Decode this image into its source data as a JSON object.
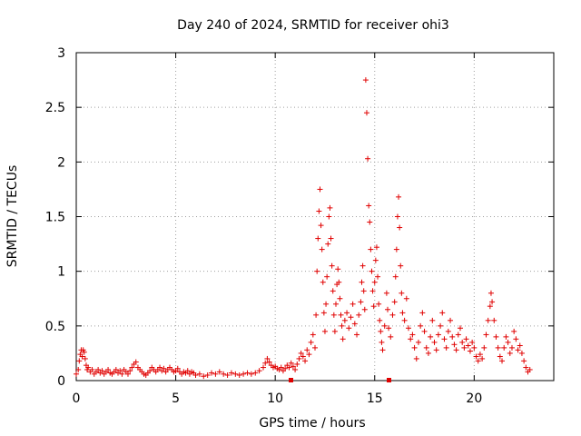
{
  "chart_data": {
    "type": "scatter",
    "title": "Day 240 of 2024, SRMTID for receiver ohi3",
    "xlabel": "GPS time / hours",
    "ylabel": "SRMTID / TECUs",
    "xlim": [
      0,
      24
    ],
    "ylim": [
      0,
      3
    ],
    "xticks": [
      0,
      5,
      10,
      15,
      20
    ],
    "xtick_labels": [
      "0",
      "5",
      "10",
      "15",
      "20"
    ],
    "yticks": [
      0,
      0.5,
      1,
      1.5,
      2,
      2.5,
      3
    ],
    "ytick_labels": [
      "0",
      "0.5",
      "1",
      "1.5",
      "2",
      "2.5",
      "3"
    ],
    "grid": true,
    "marker": "plus",
    "color": "#e00000",
    "series": [
      {
        "name": "SRMTID",
        "points": [
          [
            0.0,
            0.06
          ],
          [
            0.1,
            0.1
          ],
          [
            0.15,
            0.18
          ],
          [
            0.2,
            0.24
          ],
          [
            0.25,
            0.28
          ],
          [
            0.3,
            0.22
          ],
          [
            0.35,
            0.28
          ],
          [
            0.4,
            0.26
          ],
          [
            0.45,
            0.2
          ],
          [
            0.5,
            0.14
          ],
          [
            0.55,
            0.1
          ],
          [
            0.6,
            0.12
          ],
          [
            0.7,
            0.08
          ],
          [
            0.8,
            0.1
          ],
          [
            0.9,
            0.06
          ],
          [
            1.0,
            0.08
          ],
          [
            1.1,
            0.1
          ],
          [
            1.2,
            0.07
          ],
          [
            1.3,
            0.09
          ],
          [
            1.4,
            0.06
          ],
          [
            1.5,
            0.08
          ],
          [
            1.6,
            0.1
          ],
          [
            1.7,
            0.07
          ],
          [
            1.8,
            0.06
          ],
          [
            1.9,
            0.08
          ],
          [
            2.0,
            0.1
          ],
          [
            2.1,
            0.07
          ],
          [
            2.2,
            0.09
          ],
          [
            2.3,
            0.06
          ],
          [
            2.4,
            0.1
          ],
          [
            2.5,
            0.08
          ],
          [
            2.6,
            0.06
          ],
          [
            2.7,
            0.09
          ],
          [
            2.8,
            0.12
          ],
          [
            2.9,
            0.15
          ],
          [
            3.0,
            0.17
          ],
          [
            3.1,
            0.12
          ],
          [
            3.2,
            0.1
          ],
          [
            3.3,
            0.08
          ],
          [
            3.4,
            0.06
          ],
          [
            3.5,
            0.05
          ],
          [
            3.6,
            0.07
          ],
          [
            3.7,
            0.09
          ],
          [
            3.8,
            0.12
          ],
          [
            3.9,
            0.1
          ],
          [
            4.0,
            0.08
          ],
          [
            4.1,
            0.1
          ],
          [
            4.2,
            0.12
          ],
          [
            4.3,
            0.09
          ],
          [
            4.4,
            0.11
          ],
          [
            4.5,
            0.08
          ],
          [
            4.6,
            0.1
          ],
          [
            4.7,
            0.12
          ],
          [
            4.8,
            0.1
          ],
          [
            4.9,
            0.08
          ],
          [
            5.0,
            0.09
          ],
          [
            5.1,
            0.11
          ],
          [
            5.2,
            0.08
          ],
          [
            5.3,
            0.06
          ],
          [
            5.4,
            0.08
          ],
          [
            5.5,
            0.07
          ],
          [
            5.6,
            0.09
          ],
          [
            5.7,
            0.06
          ],
          [
            5.8,
            0.08
          ],
          [
            5.9,
            0.07
          ],
          [
            6.0,
            0.05
          ],
          [
            6.2,
            0.06
          ],
          [
            6.4,
            0.04
          ],
          [
            6.6,
            0.05
          ],
          [
            6.8,
            0.07
          ],
          [
            7.0,
            0.06
          ],
          [
            7.2,
            0.08
          ],
          [
            7.4,
            0.06
          ],
          [
            7.6,
            0.05
          ],
          [
            7.8,
            0.07
          ],
          [
            8.0,
            0.06
          ],
          [
            8.2,
            0.05
          ],
          [
            8.4,
            0.06
          ],
          [
            8.6,
            0.07
          ],
          [
            8.8,
            0.06
          ],
          [
            9.0,
            0.07
          ],
          [
            9.2,
            0.09
          ],
          [
            9.4,
            0.12
          ],
          [
            9.5,
            0.16
          ],
          [
            9.6,
            0.2
          ],
          [
            9.7,
            0.17
          ],
          [
            9.8,
            0.14
          ],
          [
            9.9,
            0.12
          ],
          [
            10.0,
            0.13
          ],
          [
            10.1,
            0.11
          ],
          [
            10.2,
            0.1
          ],
          [
            10.3,
            0.12
          ],
          [
            10.4,
            0.09
          ],
          [
            10.5,
            0.11
          ],
          [
            10.6,
            0.14
          ],
          [
            10.7,
            0.12
          ],
          [
            10.8,
            0.16
          ],
          [
            10.9,
            0.13
          ],
          [
            11.0,
            0.1
          ],
          [
            11.1,
            0.15
          ],
          [
            11.2,
            0.2
          ],
          [
            11.3,
            0.25
          ],
          [
            11.4,
            0.22
          ],
          [
            11.5,
            0.18
          ],
          [
            11.6,
            0.28
          ],
          [
            11.7,
            0.24
          ],
          [
            11.8,
            0.35
          ],
          [
            11.9,
            0.42
          ],
          [
            12.0,
            0.3
          ],
          [
            12.05,
            0.6
          ],
          [
            12.1,
            1.0
          ],
          [
            12.15,
            1.3
          ],
          [
            12.2,
            1.55
          ],
          [
            12.25,
            1.75
          ],
          [
            12.3,
            1.42
          ],
          [
            12.35,
            1.2
          ],
          [
            12.4,
            0.9
          ],
          [
            12.45,
            0.62
          ],
          [
            12.5,
            0.45
          ],
          [
            12.55,
            0.7
          ],
          [
            12.6,
            0.95
          ],
          [
            12.65,
            1.25
          ],
          [
            12.7,
            1.5
          ],
          [
            12.75,
            1.58
          ],
          [
            12.8,
            1.3
          ],
          [
            12.85,
            1.05
          ],
          [
            12.9,
            0.82
          ],
          [
            12.95,
            0.6
          ],
          [
            13.0,
            0.45
          ],
          [
            13.05,
            0.7
          ],
          [
            13.1,
            0.88
          ],
          [
            13.15,
            1.02
          ],
          [
            13.2,
            0.9
          ],
          [
            13.25,
            0.75
          ],
          [
            13.3,
            0.6
          ],
          [
            13.35,
            0.5
          ],
          [
            13.4,
            0.38
          ],
          [
            13.5,
            0.55
          ],
          [
            13.6,
            0.62
          ],
          [
            13.7,
            0.48
          ],
          [
            13.8,
            0.58
          ],
          [
            13.9,
            0.7
          ],
          [
            14.0,
            0.52
          ],
          [
            14.1,
            0.42
          ],
          [
            14.2,
            0.6
          ],
          [
            14.3,
            0.72
          ],
          [
            14.35,
            0.9
          ],
          [
            14.4,
            1.05
          ],
          [
            14.45,
            0.82
          ],
          [
            14.5,
            0.65
          ],
          [
            14.55,
            2.75
          ],
          [
            14.6,
            2.45
          ],
          [
            14.65,
            2.03
          ],
          [
            14.7,
            1.6
          ],
          [
            14.75,
            1.45
          ],
          [
            14.8,
            1.2
          ],
          [
            14.85,
            1.0
          ],
          [
            14.9,
            0.82
          ],
          [
            14.95,
            0.68
          ],
          [
            15.0,
            0.9
          ],
          [
            15.05,
            1.1
          ],
          [
            15.1,
            1.22
          ],
          [
            15.15,
            0.95
          ],
          [
            15.2,
            0.7
          ],
          [
            15.25,
            0.55
          ],
          [
            15.3,
            0.45
          ],
          [
            15.35,
            0.35
          ],
          [
            15.4,
            0.28
          ],
          [
            15.5,
            0.5
          ],
          [
            15.6,
            0.8
          ],
          [
            15.65,
            0.65
          ],
          [
            15.7,
            0.48
          ],
          [
            15.8,
            0.4
          ],
          [
            15.9,
            0.6
          ],
          [
            16.0,
            0.72
          ],
          [
            16.05,
            0.95
          ],
          [
            16.1,
            1.2
          ],
          [
            16.15,
            1.5
          ],
          [
            16.2,
            1.68
          ],
          [
            16.25,
            1.4
          ],
          [
            16.3,
            1.05
          ],
          [
            16.35,
            0.8
          ],
          [
            16.4,
            0.62
          ],
          [
            16.5,
            0.55
          ],
          [
            16.6,
            0.75
          ],
          [
            16.7,
            0.48
          ],
          [
            16.8,
            0.38
          ],
          [
            16.9,
            0.42
          ],
          [
            17.0,
            0.3
          ],
          [
            17.1,
            0.2
          ],
          [
            17.2,
            0.35
          ],
          [
            17.3,
            0.5
          ],
          [
            17.4,
            0.62
          ],
          [
            17.5,
            0.45
          ],
          [
            17.6,
            0.3
          ],
          [
            17.7,
            0.25
          ],
          [
            17.8,
            0.4
          ],
          [
            17.9,
            0.55
          ],
          [
            18.0,
            0.35
          ],
          [
            18.1,
            0.28
          ],
          [
            18.2,
            0.42
          ],
          [
            18.3,
            0.5
          ],
          [
            18.4,
            0.62
          ],
          [
            18.5,
            0.38
          ],
          [
            18.6,
            0.3
          ],
          [
            18.7,
            0.45
          ],
          [
            18.8,
            0.55
          ],
          [
            18.9,
            0.4
          ],
          [
            19.0,
            0.33
          ],
          [
            19.1,
            0.28
          ],
          [
            19.2,
            0.42
          ],
          [
            19.3,
            0.48
          ],
          [
            19.4,
            0.35
          ],
          [
            19.5,
            0.3
          ],
          [
            19.6,
            0.38
          ],
          [
            19.7,
            0.32
          ],
          [
            19.8,
            0.27
          ],
          [
            19.9,
            0.35
          ],
          [
            20.0,
            0.3
          ],
          [
            20.1,
            0.22
          ],
          [
            20.2,
            0.18
          ],
          [
            20.3,
            0.24
          ],
          [
            20.4,
            0.2
          ],
          [
            20.5,
            0.3
          ],
          [
            20.6,
            0.42
          ],
          [
            20.7,
            0.55
          ],
          [
            20.8,
            0.68
          ],
          [
            20.85,
            0.8
          ],
          [
            20.9,
            0.72
          ],
          [
            21.0,
            0.55
          ],
          [
            21.1,
            0.4
          ],
          [
            21.2,
            0.3
          ],
          [
            21.3,
            0.22
          ],
          [
            21.4,
            0.18
          ],
          [
            21.5,
            0.3
          ],
          [
            21.6,
            0.4
          ],
          [
            21.7,
            0.35
          ],
          [
            21.8,
            0.25
          ],
          [
            21.9,
            0.3
          ],
          [
            22.0,
            0.45
          ],
          [
            22.1,
            0.38
          ],
          [
            22.2,
            0.28
          ],
          [
            22.3,
            0.32
          ],
          [
            22.4,
            0.25
          ],
          [
            22.5,
            0.18
          ],
          [
            22.6,
            0.12
          ],
          [
            22.7,
            0.08
          ],
          [
            22.8,
            0.1
          ]
        ]
      }
    ]
  }
}
